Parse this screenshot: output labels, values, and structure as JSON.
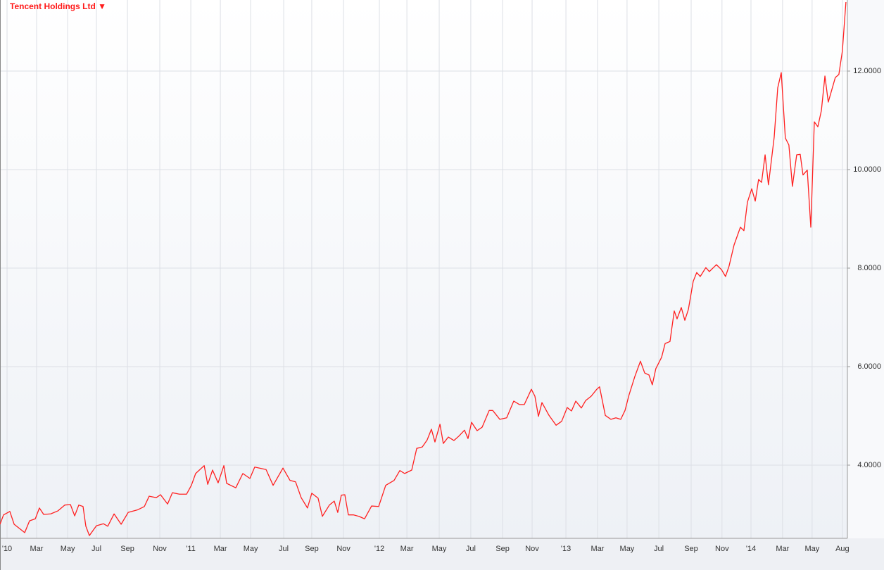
{
  "chart_data": {
    "type": "line",
    "title": "Tencent Holdings Ltd ▼",
    "color": "#ff2020",
    "grid": true,
    "x": [
      2009.962,
      2009.981,
      2010.015,
      2010.038,
      2010.095,
      2010.121,
      2010.152,
      2010.174,
      2010.197,
      2010.235,
      2010.273,
      2010.311,
      2010.341,
      2010.364,
      2010.386,
      2010.409,
      2010.424,
      2010.443,
      2010.481,
      2010.519,
      2010.542,
      2010.576,
      2010.614,
      2010.652,
      2010.701,
      2010.739,
      2010.765,
      2010.803,
      2010.826,
      2010.864,
      2010.89,
      2010.928,
      2010.966,
      2010.992,
      2011.015,
      2011.061,
      2011.08,
      2011.106,
      2011.136,
      2011.167,
      2011.182,
      2011.231,
      2011.269,
      2011.307,
      2011.333,
      2011.394,
      2011.432,
      2011.485,
      2011.523,
      2011.553,
      2011.583,
      2011.617,
      2011.64,
      2011.674,
      2011.697,
      2011.735,
      2011.761,
      2011.78,
      2011.799,
      2011.818,
      2011.837,
      2011.864,
      2011.894,
      2011.924,
      2011.962,
      2012.0,
      2012.038,
      2012.083,
      2012.114,
      2012.14,
      2012.178,
      2012.205,
      2012.235,
      2012.261,
      2012.284,
      2012.303,
      2012.33,
      2012.348,
      2012.375,
      2012.405,
      2012.432,
      2012.462,
      2012.481,
      2012.5,
      2012.53,
      2012.557,
      2012.595,
      2012.614,
      2012.652,
      2012.689,
      2012.727,
      2012.758,
      2012.784,
      2012.822,
      2012.841,
      2012.86,
      2012.879,
      2012.917,
      2012.955,
      2012.985,
      2013.015,
      2013.038,
      2013.061,
      2013.091,
      2013.114,
      2013.144,
      2013.174,
      2013.189,
      2013.22,
      2013.25,
      2013.277,
      2013.303,
      2013.326,
      2013.348,
      2013.379,
      2013.409,
      2013.432,
      2013.455,
      2013.473,
      2013.492,
      2013.523,
      2013.542,
      2013.568,
      2013.591,
      2013.606,
      2013.629,
      2013.648,
      2013.667,
      2013.693,
      2013.712,
      2013.731,
      2013.761,
      2013.78,
      2013.818,
      2013.845,
      2013.867,
      2013.886,
      2013.913,
      2013.947,
      2013.966,
      2013.985,
      2014.008,
      2014.027,
      2014.045,
      2014.061,
      2014.08,
      2014.098,
      2014.129,
      2014.148,
      2014.167,
      2014.189,
      2014.208,
      2014.227,
      2014.25,
      2014.269,
      2014.284,
      2014.307,
      2014.326,
      2014.345,
      2014.364,
      2014.383,
      2014.402,
      2014.42,
      2014.458,
      2014.477,
      2014.496,
      2014.515
    ],
    "values": [
      2.8,
      2.99,
      3.06,
      2.8,
      2.63,
      2.87,
      2.91,
      3.13,
      3.0,
      3.01,
      3.07,
      3.19,
      3.2,
      2.97,
      3.19,
      3.16,
      2.76,
      2.57,
      2.77,
      2.81,
      2.76,
      3.01,
      2.8,
      3.04,
      3.09,
      3.16,
      3.37,
      3.34,
      3.4,
      3.21,
      3.44,
      3.41,
      3.41,
      3.59,
      3.83,
      3.99,
      3.61,
      3.9,
      3.64,
      3.99,
      3.63,
      3.54,
      3.83,
      3.73,
      3.96,
      3.91,
      3.59,
      3.94,
      3.69,
      3.66,
      3.34,
      3.13,
      3.43,
      3.33,
      2.96,
      3.19,
      3.27,
      3.04,
      3.39,
      3.4,
      2.99,
      2.99,
      2.96,
      2.91,
      3.17,
      3.16,
      3.59,
      3.69,
      3.89,
      3.83,
      3.9,
      4.34,
      4.37,
      4.51,
      4.73,
      4.47,
      4.83,
      4.44,
      4.57,
      4.5,
      4.59,
      4.71,
      4.54,
      4.87,
      4.7,
      4.77,
      5.11,
      5.11,
      4.93,
      4.96,
      5.3,
      5.23,
      5.23,
      5.54,
      5.4,
      4.99,
      5.27,
      5.01,
      4.81,
      4.89,
      5.17,
      5.1,
      5.3,
      5.16,
      5.31,
      5.4,
      5.54,
      5.59,
      5.01,
      4.93,
      4.96,
      4.93,
      5.11,
      5.43,
      5.8,
      6.11,
      5.87,
      5.83,
      5.63,
      5.96,
      6.19,
      6.47,
      6.51,
      7.13,
      6.97,
      7.2,
      6.94,
      7.16,
      7.73,
      7.91,
      7.83,
      8.01,
      7.93,
      8.07,
      7.97,
      7.83,
      8.04,
      8.47,
      8.83,
      8.76,
      9.34,
      9.61,
      9.36,
      9.8,
      9.74,
      10.3,
      9.69,
      10.66,
      11.66,
      11.97,
      10.64,
      10.5,
      9.66,
      10.3,
      10.31,
      9.89,
      9.99,
      8.83,
      10.97,
      10.87,
      11.2,
      11.9,
      11.37,
      11.87,
      11.93,
      12.41,
      13.4
    ],
    "xlim": [
      2009.962,
      2014.523
    ],
    "xticks": [
      {
        "value": 2010.0,
        "label": "'10"
      },
      {
        "value": 2010.159,
        "label": "Mar"
      },
      {
        "value": 2010.326,
        "label": "May"
      },
      {
        "value": 2010.481,
        "label": "Jul"
      },
      {
        "value": 2010.648,
        "label": "Sep"
      },
      {
        "value": 2010.822,
        "label": "Nov"
      },
      {
        "value": 2010.989,
        "label": "'11"
      },
      {
        "value": 2011.148,
        "label": "Mar"
      },
      {
        "value": 2011.311,
        "label": "May"
      },
      {
        "value": 2011.489,
        "label": "Jul"
      },
      {
        "value": 2011.64,
        "label": "Sep"
      },
      {
        "value": 2011.811,
        "label": "Nov"
      },
      {
        "value": 2012.004,
        "label": "'12"
      },
      {
        "value": 2012.152,
        "label": "Mar"
      },
      {
        "value": 2012.326,
        "label": "May"
      },
      {
        "value": 2012.496,
        "label": "Jul"
      },
      {
        "value": 2012.667,
        "label": "Sep"
      },
      {
        "value": 2012.826,
        "label": "Nov"
      },
      {
        "value": 2013.008,
        "label": "'13"
      },
      {
        "value": 2013.178,
        "label": "Mar"
      },
      {
        "value": 2013.337,
        "label": "May"
      },
      {
        "value": 2013.508,
        "label": "Jul"
      },
      {
        "value": 2013.682,
        "label": "Sep"
      },
      {
        "value": 2013.848,
        "label": "Nov"
      },
      {
        "value": 2014.004,
        "label": "'14"
      },
      {
        "value": 2014.174,
        "label": "Mar"
      },
      {
        "value": 2014.333,
        "label": "May"
      },
      {
        "value": 2014.496,
        "label": "Aug"
      }
    ],
    "ylim": [
      2.514,
      13.443
    ],
    "yticks": [
      {
        "value": 4,
        "label": "4.0000"
      },
      {
        "value": 6,
        "label": "6.0000"
      },
      {
        "value": 8,
        "label": "8.0000"
      },
      {
        "value": 10,
        "label": "10.0000"
      },
      {
        "value": 12,
        "label": "12.0000"
      }
    ]
  }
}
